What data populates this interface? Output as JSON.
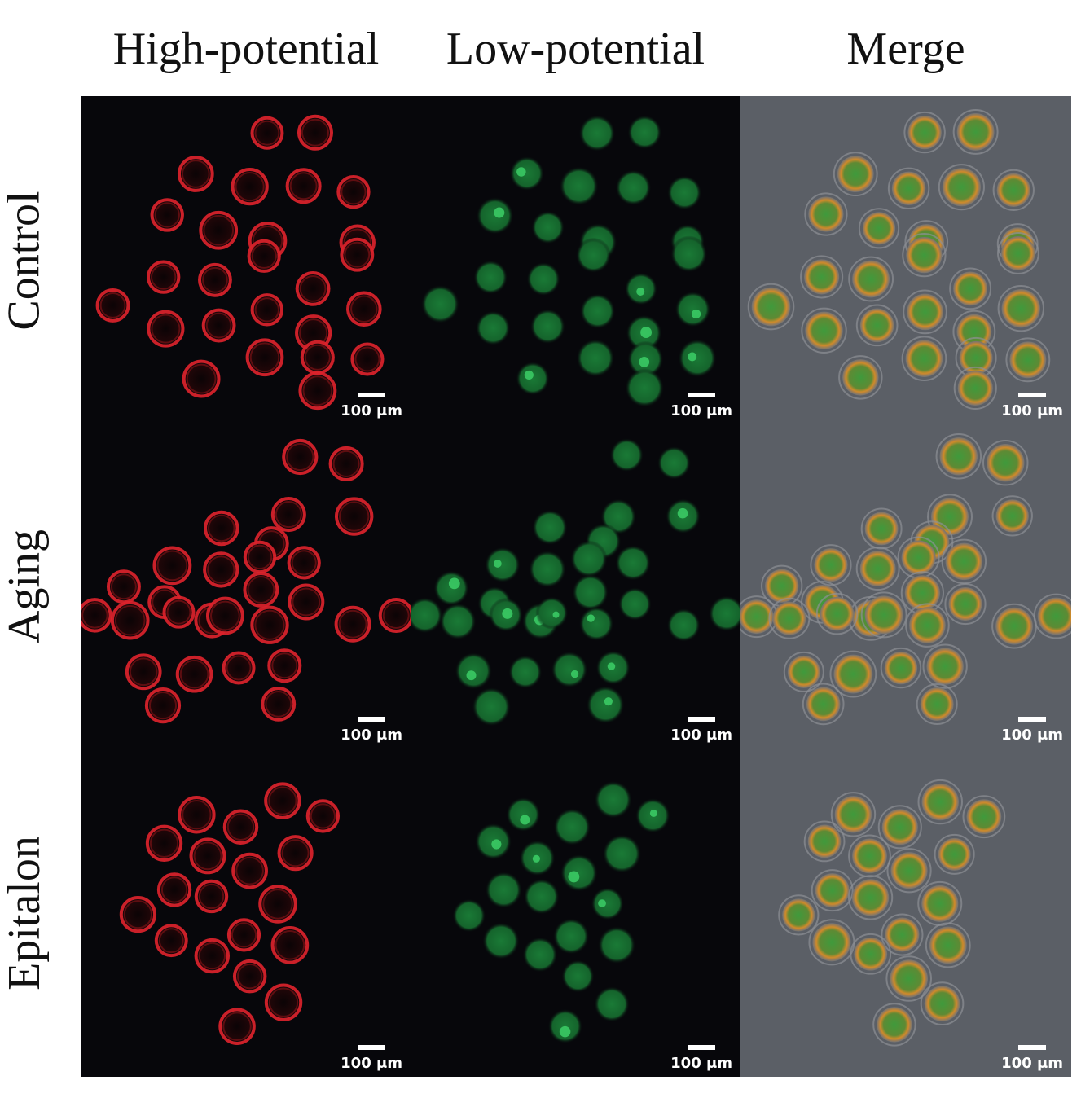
{
  "columns": [
    "High-potential",
    "Low-potential",
    "Merge"
  ],
  "rows": [
    "Control",
    "Aging",
    "Epitalon"
  ],
  "scale_label": "100 μm",
  "colors": {
    "high_potential": "#e0242c",
    "low_potential": "#22a046",
    "merge_ring": "#d98a28",
    "merge_background": "#5b5f66",
    "panel_background": "#07070b"
  }
}
